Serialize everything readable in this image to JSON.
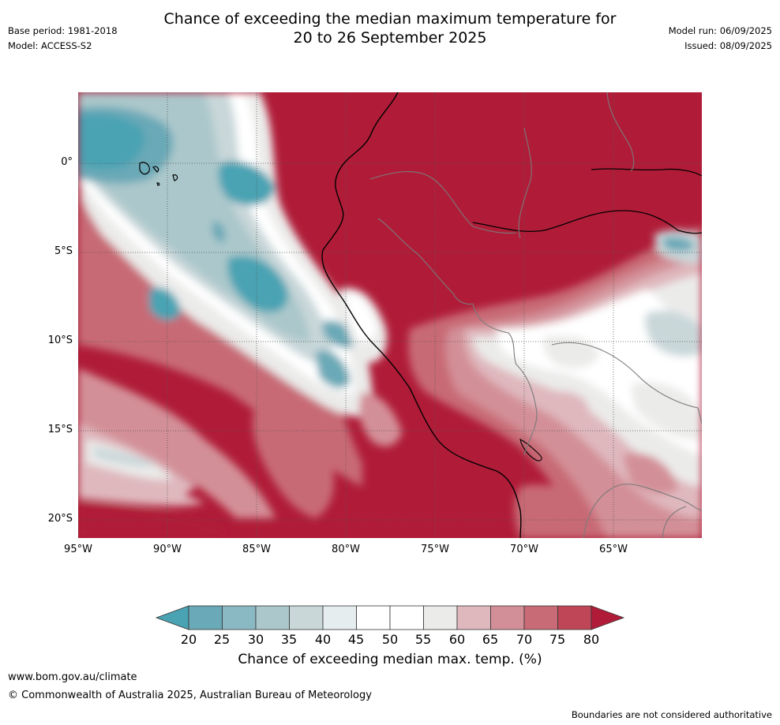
{
  "title_line1": "Chance of exceeding the median maximum temperature for",
  "title_line2": "20 to 26 September 2025",
  "header_left": {
    "base_period": "Base period: 1981-2018",
    "model": "Model: ACCESS-S2"
  },
  "header_right": {
    "model_run": "Model run: 06/09/2025",
    "issued": "Issued: 08/09/2025"
  },
  "map": {
    "lat_labels": [
      "0°",
      "5°S",
      "10°S",
      "15°S",
      "20°S"
    ],
    "lon_labels": [
      "95°W",
      "90°W",
      "85°W",
      "80°W",
      "75°W",
      "70°W",
      "65°W"
    ]
  },
  "colorbar": {
    "ticks": [
      "20",
      "25",
      "30",
      "35",
      "40",
      "45",
      "50",
      "55",
      "60",
      "65",
      "70",
      "75",
      "80"
    ],
    "colors": [
      "#4aa3b3",
      "#6aa9b7",
      "#8bb9c3",
      "#abc7cb",
      "#c9d7d9",
      "#e6edef",
      "#ffffff",
      "#ffffff",
      "#ebebea",
      "#dfb8bd",
      "#d38f97",
      "#c86b76",
      "#bf4656",
      "#b01c38"
    ],
    "label": "Chance of exceeding median max. temp. (%)"
  },
  "footer": {
    "url": "www.bom.gov.au/climate",
    "copyright": "© Commonwealth of Australia 2025, Australian Bureau of Meteorology",
    "note": "Boundaries are not considered authoritative"
  }
}
